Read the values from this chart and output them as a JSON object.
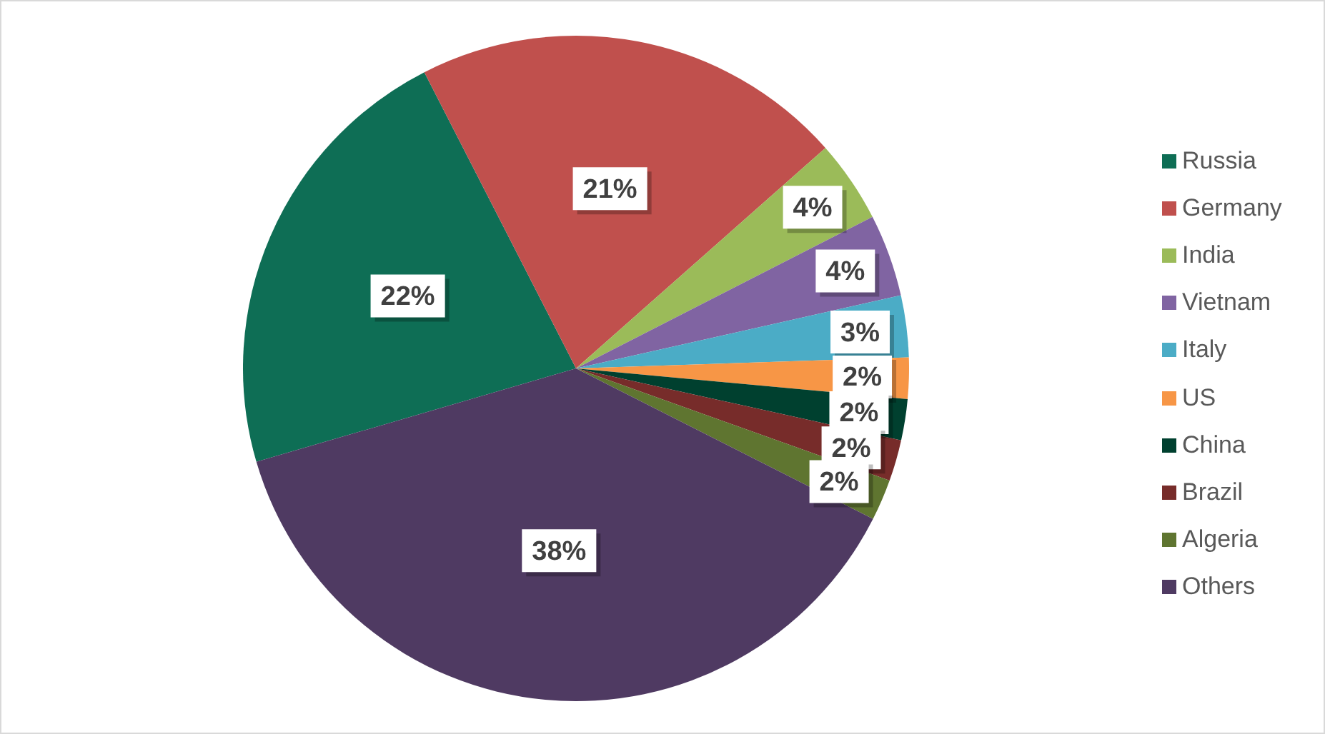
{
  "chart_data": {
    "type": "pie",
    "categories": [
      "Russia",
      "Germany",
      "India",
      "Vietnam",
      "Italy",
      "US",
      "China",
      "Brazil",
      "Algeria",
      "Others"
    ],
    "values": [
      22,
      21,
      4,
      4,
      3,
      2,
      2,
      2,
      2,
      38
    ],
    "colors": [
      "#0e6e55",
      "#c0504d",
      "#9bbb59",
      "#8064a2",
      "#4bacc6",
      "#f79646",
      "#00402f",
      "#772c2a",
      "#5f7530",
      "#4f3a62"
    ],
    "value_labels": [
      "22%",
      "21%",
      "4%",
      "4%",
      "3%",
      "2%",
      "2%",
      "2%",
      "2%",
      "38%"
    ],
    "legend": "right"
  }
}
